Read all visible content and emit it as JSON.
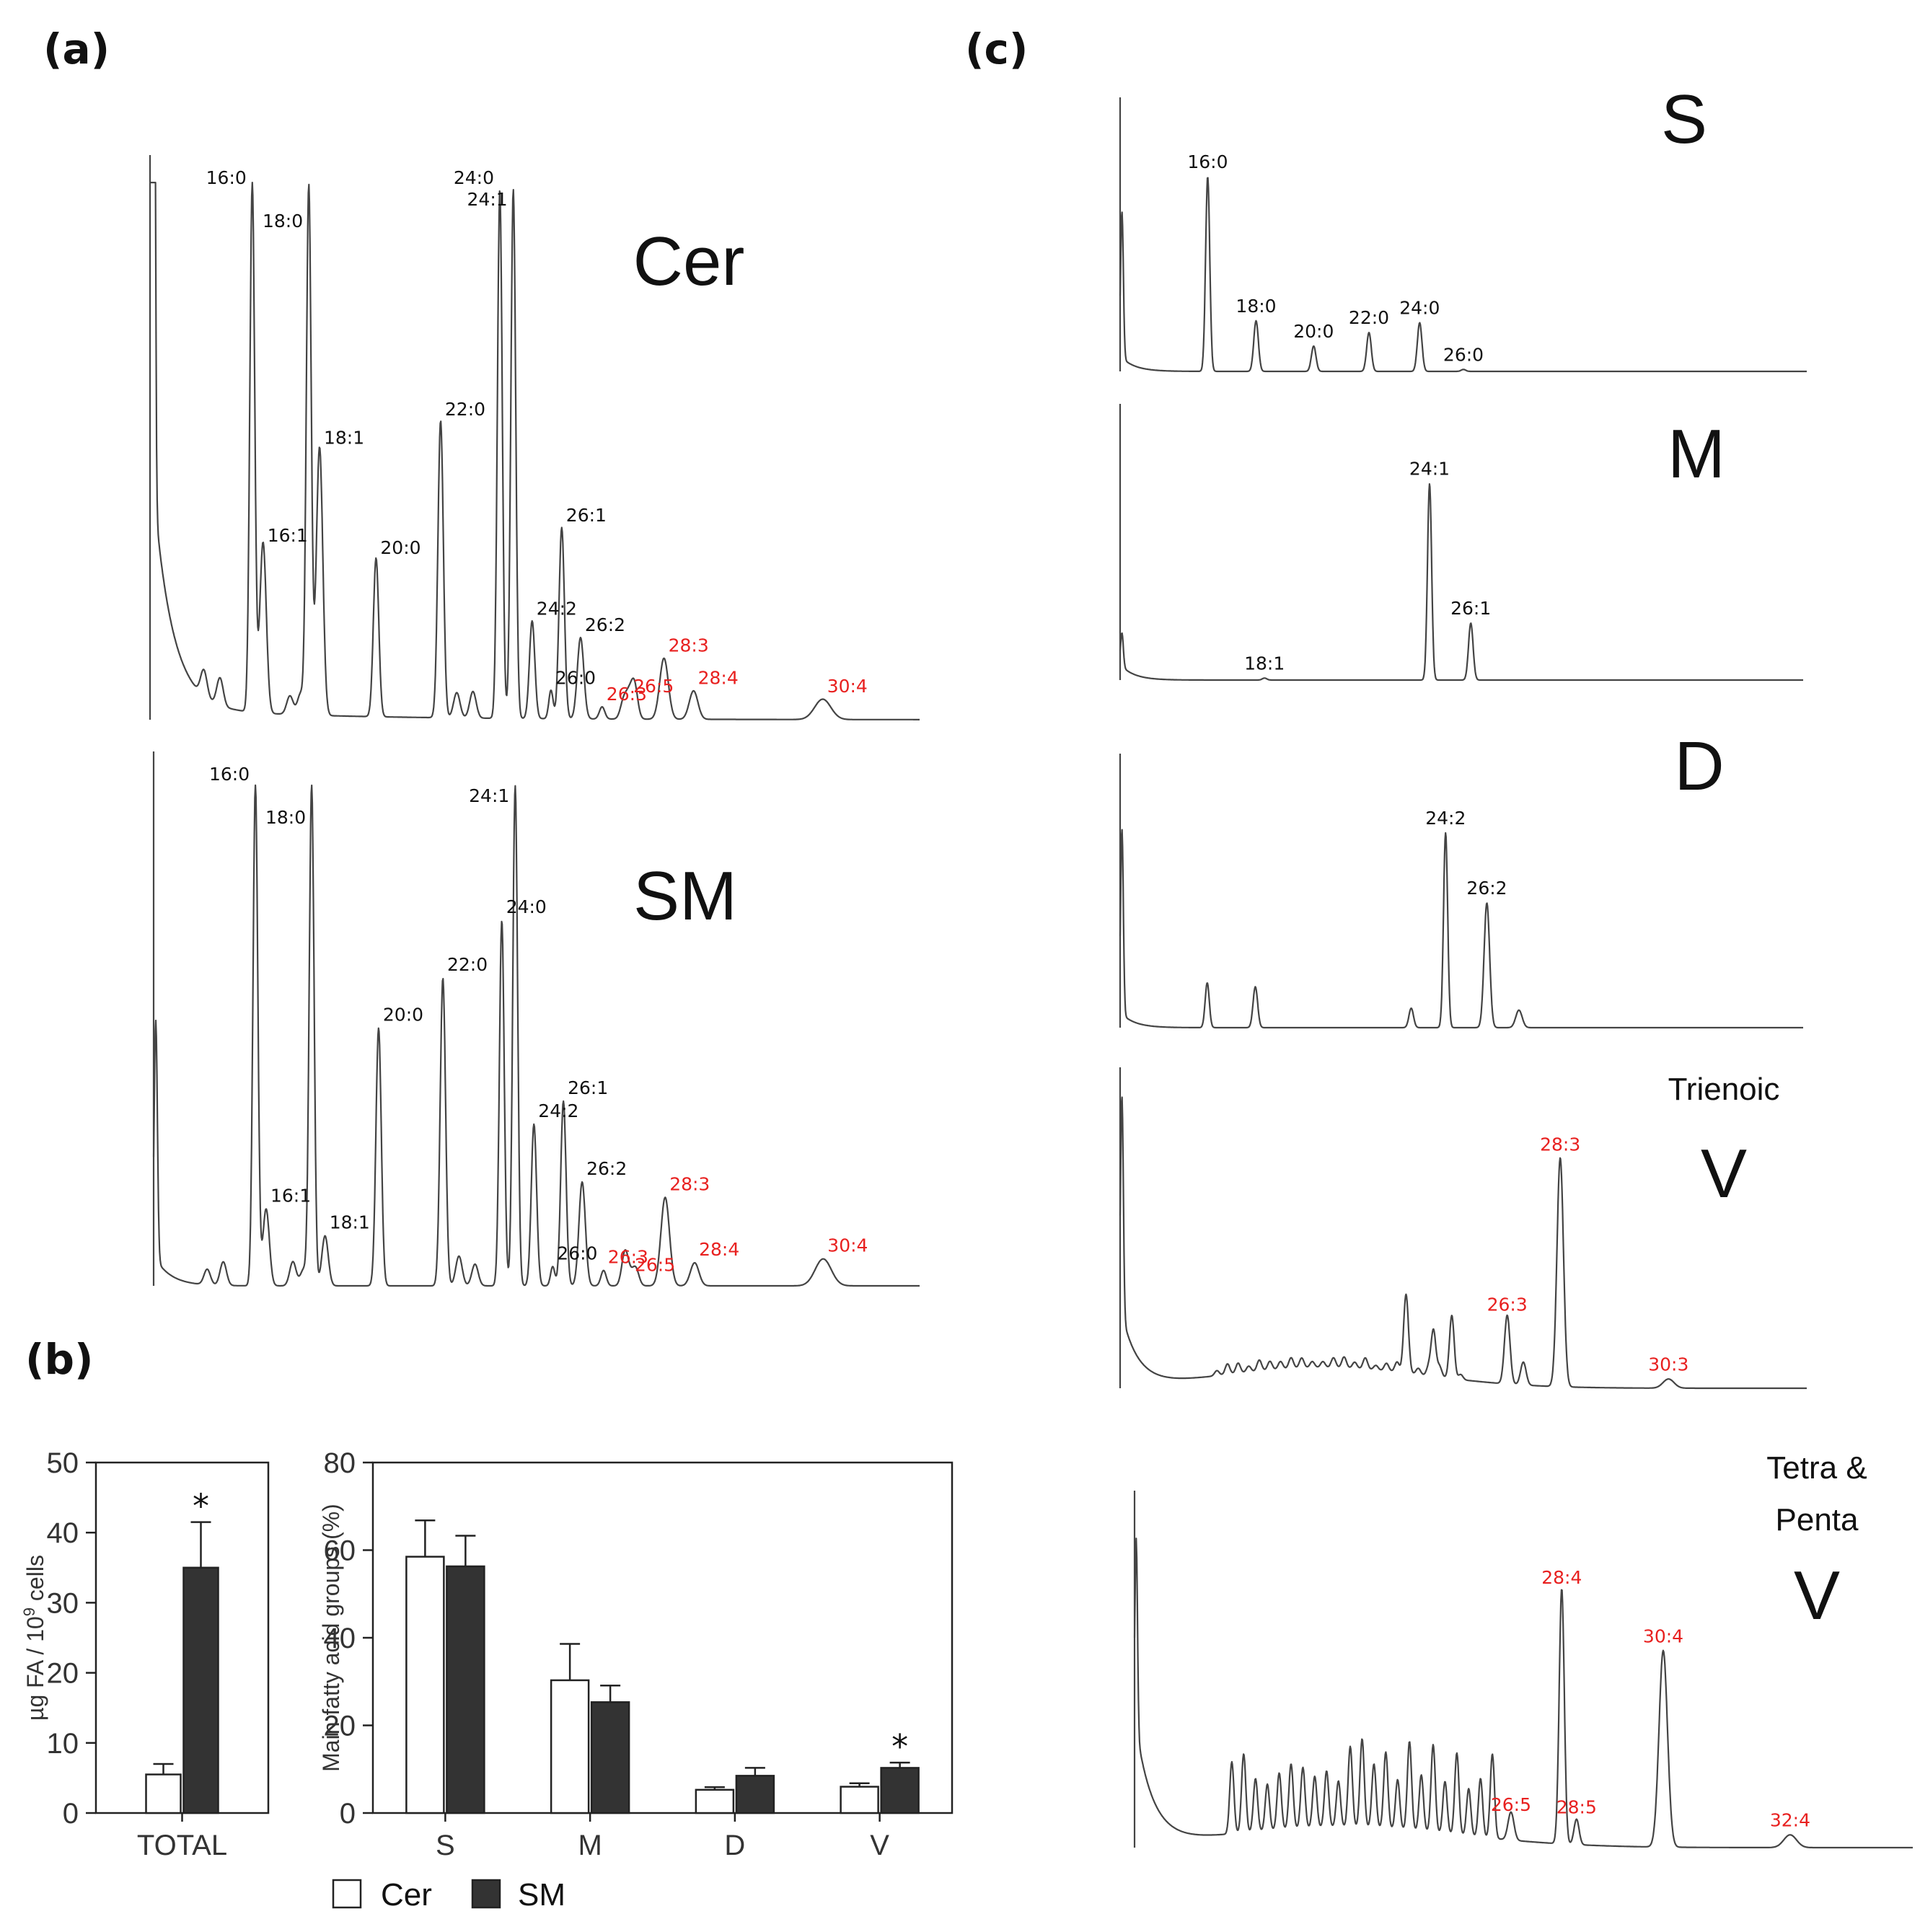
{
  "panels": {
    "a": "(a)",
    "b": "(b)",
    "c": "(c)"
  },
  "colors": {
    "black_label": "#111111",
    "red_label": "#e8201f",
    "trace": "#444444",
    "cer_bar": "#ffffff",
    "sm_bar": "#333333"
  },
  "chart_data": [
    {
      "type": "chromatogram",
      "panel": "a",
      "title": "Cer",
      "peaks": [
        {
          "label": "16:0",
          "rt": 16.0,
          "height": 1.3,
          "width": 0.045,
          "red": false
        },
        {
          "label": "16:1",
          "rt": 16.2,
          "height": 0.42,
          "width": 0.06,
          "red": false
        },
        {
          "label": "18:0",
          "rt": 17.05,
          "height": 1.3,
          "width": 0.045,
          "red": false
        },
        {
          "label": "18:1",
          "rt": 17.25,
          "height": 0.66,
          "width": 0.06,
          "red": false
        },
        {
          "label": "20:0",
          "rt": 18.3,
          "height": 0.39,
          "width": 0.05,
          "red": false
        },
        {
          "label": "22:0",
          "rt": 19.5,
          "height": 0.73,
          "width": 0.05,
          "red": false
        },
        {
          "label": "24:0",
          "rt": 20.6,
          "height": 1.3,
          "width": 0.045,
          "red": false
        },
        {
          "label": "24:1",
          "rt": 20.85,
          "height": 1.3,
          "width": 0.045,
          "red": false
        },
        {
          "label": "24:2",
          "rt": 21.2,
          "height": 0.24,
          "width": 0.05,
          "red": false
        },
        {
          "label": "26:0",
          "rt": 21.55,
          "height": 0.07,
          "width": 0.04,
          "red": false
        },
        {
          "label": "26:1",
          "rt": 21.75,
          "height": 0.47,
          "width": 0.05,
          "red": false
        },
        {
          "label": "26:2",
          "rt": 22.1,
          "height": 0.2,
          "width": 0.06,
          "red": false
        },
        {
          "label": "26:3",
          "rt": 22.5,
          "height": 0.03,
          "width": 0.05,
          "red": true
        },
        {
          "label": "26:5",
          "rt": 23.0,
          "height": 0.05,
          "width": 0.06,
          "red": true
        },
        {
          "label": "28:3",
          "rt": 23.65,
          "height": 0.15,
          "width": 0.08,
          "red": true
        },
        {
          "label": "28:4",
          "rt": 24.2,
          "height": 0.07,
          "width": 0.08,
          "red": true
        },
        {
          "label": "30:4",
          "rt": 26.6,
          "height": 0.05,
          "width": 0.15,
          "red": true
        }
      ]
    },
    {
      "type": "chromatogram",
      "panel": "a",
      "title": "SM",
      "peaks": [
        {
          "label": "16:0",
          "rt": 16.0,
          "height": 1.3,
          "width": 0.045,
          "red": false
        },
        {
          "label": "16:1",
          "rt": 16.2,
          "height": 0.2,
          "width": 0.06,
          "red": false
        },
        {
          "label": "18:0",
          "rt": 17.05,
          "height": 1.3,
          "width": 0.045,
          "red": false
        },
        {
          "label": "18:1",
          "rt": 17.3,
          "height": 0.13,
          "width": 0.06,
          "red": false
        },
        {
          "label": "20:0",
          "rt": 18.3,
          "height": 0.67,
          "width": 0.05,
          "red": false
        },
        {
          "label": "22:0",
          "rt": 19.5,
          "height": 0.8,
          "width": 0.05,
          "red": false
        },
        {
          "label": "24:0",
          "rt": 20.6,
          "height": 0.95,
          "width": 0.045,
          "red": false
        },
        {
          "label": "24:1",
          "rt": 20.85,
          "height": 1.3,
          "width": 0.045,
          "red": false
        },
        {
          "label": "24:2",
          "rt": 21.2,
          "height": 0.42,
          "width": 0.05,
          "red": false
        },
        {
          "label": "26:0",
          "rt": 21.55,
          "height": 0.05,
          "width": 0.04,
          "red": false
        },
        {
          "label": "26:1",
          "rt": 21.75,
          "height": 0.48,
          "width": 0.05,
          "red": false
        },
        {
          "label": "26:2",
          "rt": 22.1,
          "height": 0.27,
          "width": 0.06,
          "red": false
        },
        {
          "label": "26:3",
          "rt": 22.5,
          "height": 0.04,
          "width": 0.05,
          "red": true
        },
        {
          "label": "26:5",
          "rt": 23.0,
          "height": 0.02,
          "width": 0.06,
          "red": true
        },
        {
          "label": "28:3",
          "rt": 23.65,
          "height": 0.23,
          "width": 0.08,
          "red": true
        },
        {
          "label": "28:4",
          "rt": 24.2,
          "height": 0.06,
          "width": 0.08,
          "red": true
        },
        {
          "label": "30:4",
          "rt": 26.6,
          "height": 0.07,
          "width": 0.15,
          "red": true
        }
      ]
    },
    {
      "type": "chromatogram",
      "panel": "c",
      "title": "S",
      "peaks": [
        {
          "label": "16:0",
          "rt": 16.0,
          "height": 1.0,
          "width": 0.045,
          "red": false
        },
        {
          "label": "18:0",
          "rt": 17.05,
          "height": 0.26,
          "width": 0.05,
          "red": false
        },
        {
          "label": "20:0",
          "rt": 18.3,
          "height": 0.13,
          "width": 0.05,
          "red": false
        },
        {
          "label": "22:0",
          "rt": 19.5,
          "height": 0.2,
          "width": 0.05,
          "red": false
        },
        {
          "label": "24:0",
          "rt": 20.6,
          "height": 0.25,
          "width": 0.05,
          "red": false
        },
        {
          "label": "26:0",
          "rt": 21.55,
          "height": 0.01,
          "width": 0.05,
          "red": false
        }
      ]
    },
    {
      "type": "chromatogram",
      "panel": "c",
      "title": "M",
      "peaks": [
        {
          "label": "18:1",
          "rt": 17.25,
          "height": 0.01,
          "width": 0.05,
          "red": false
        },
        {
          "label": "24:1",
          "rt": 20.85,
          "height": 1.0,
          "width": 0.045,
          "red": false
        },
        {
          "label": "26:1",
          "rt": 21.75,
          "height": 0.29,
          "width": 0.05,
          "red": false
        }
      ]
    },
    {
      "type": "chromatogram",
      "panel": "c",
      "title": "D",
      "peaks": [
        {
          "label": "24:2",
          "rt": 21.2,
          "height": 1.0,
          "width": 0.045,
          "red": false
        },
        {
          "label": "26:2",
          "rt": 22.1,
          "height": 0.64,
          "width": 0.06,
          "red": false
        }
      ]
    },
    {
      "type": "chromatogram",
      "panel": "c",
      "title": "V",
      "subtitle": "Trienoic",
      "peaks": [
        {
          "label": "26:3",
          "rt": 22.5,
          "height": 0.3,
          "width": 0.06,
          "red": true
        },
        {
          "label": "28:3",
          "rt": 23.65,
          "height": 1.0,
          "width": 0.07,
          "red": true
        },
        {
          "label": "30:3",
          "rt": 26.0,
          "height": 0.04,
          "width": 0.12,
          "red": true
        }
      ]
    },
    {
      "type": "chromatogram",
      "panel": "c",
      "title": "V",
      "subtitle": "Tetra & Penta",
      "peaks": [
        {
          "label": "26:5",
          "rt": 23.0,
          "height": 0.11,
          "width": 0.07,
          "red": true
        },
        {
          "label": "28:4",
          "rt": 24.2,
          "height": 1.0,
          "width": 0.06,
          "red": true
        },
        {
          "label": "28:5",
          "rt": 24.55,
          "height": 0.1,
          "width": 0.06,
          "red": true
        },
        {
          "label": "30:4",
          "rt": 26.6,
          "height": 0.77,
          "width": 0.1,
          "red": true
        },
        {
          "label": "32:4",
          "rt": 29.6,
          "height": 0.05,
          "width": 0.15,
          "red": true
        }
      ]
    },
    {
      "type": "bar",
      "panel": "b",
      "categories": [
        "TOTAL"
      ],
      "series": [
        {
          "name": "Cer",
          "values": [
            5.5
          ],
          "errors": [
            1.5
          ]
        },
        {
          "name": "SM",
          "values": [
            35
          ],
          "errors": [
            6.5
          ]
        }
      ],
      "significant": [
        true
      ],
      "ylabel": "µg FA / 10",
      "ylabel_sup": "9",
      "ylabel_tail": " cells",
      "ylim": [
        0,
        50
      ],
      "yticks": [
        "0",
        "10",
        "20",
        "30",
        "40",
        "50"
      ]
    },
    {
      "type": "bar",
      "panel": "b",
      "categories": [
        "S",
        "M",
        "D",
        "V"
      ],
      "series": [
        {
          "name": "Cer",
          "values": [
            58.5,
            30.3,
            5.3,
            6.0
          ],
          "errors": [
            8.3,
            8.3,
            0.6,
            0.8
          ]
        },
        {
          "name": "SM",
          "values": [
            56.3,
            25.3,
            8.5,
            10.3
          ],
          "errors": [
            7.0,
            3.8,
            1.8,
            1.2
          ]
        }
      ],
      "significant": [
        false,
        false,
        false,
        true
      ],
      "ylabel": "Main fatty acid groups (%)",
      "ylim": [
        0,
        80
      ],
      "yticks": [
        "0",
        "20",
        "40",
        "60",
        "80"
      ]
    }
  ],
  "legend": {
    "items": [
      {
        "label": "Cer"
      },
      {
        "label": "SM"
      }
    ]
  }
}
